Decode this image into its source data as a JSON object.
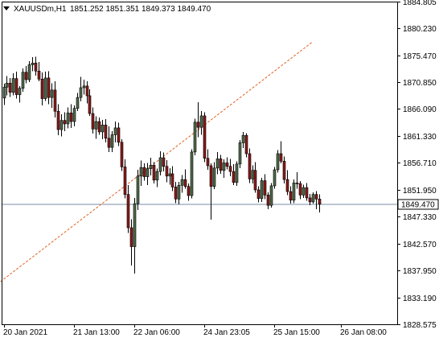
{
  "header": {
    "symbol": "XAUUSDm,H1",
    "ohlc": "1851.252 1851.351 1849.373 1849.470"
  },
  "colors": {
    "bull": "#4f6b4a",
    "bear": "#8b1a1a",
    "wick": "#000000",
    "price_line": "#7a8da8",
    "price_label_bg": "#ffffff",
    "trendline": "#e06020",
    "axis": "#000000"
  },
  "chart_data": {
    "type": "candlestick",
    "instrument": "XAUUSDm",
    "timeframe": "H1",
    "ylim": [
      1828.575,
      1884.805
    ],
    "y_ticks": [
      {
        "value": 1884.805,
        "label": "1884.805"
      },
      {
        "value": 1880.23,
        "label": "1880.230"
      },
      {
        "value": 1875.47,
        "label": "1875.470"
      },
      {
        "value": 1870.85,
        "label": "1870.850"
      },
      {
        "value": 1866.09,
        "label": "1866.090"
      },
      {
        "value": 1861.33,
        "label": "1861.330"
      },
      {
        "value": 1856.71,
        "label": "1856.710"
      },
      {
        "value": 1851.95,
        "label": "1851.950"
      },
      {
        "value": 1847.33,
        "label": "1847.330"
      },
      {
        "value": 1842.57,
        "label": "1842.570"
      },
      {
        "value": 1837.95,
        "label": "1837.950"
      },
      {
        "value": 1833.19,
        "label": "1833.190"
      },
      {
        "value": 1828.575,
        "label": "1828.575"
      }
    ],
    "x_ticks": [
      {
        "index": 0,
        "label": "20 Jan 2021"
      },
      {
        "index": 22,
        "label": "21 Jan 13:00"
      },
      {
        "index": 41,
        "label": "22 Jan 06:00"
      },
      {
        "index": 63,
        "label": "24 Jan 23:05"
      },
      {
        "index": 85,
        "label": "25 Jan 15:00"
      },
      {
        "index": 106,
        "label": "26 Jan 08:00"
      }
    ],
    "current_price": {
      "value": 1849.47,
      "label": "1849.470"
    },
    "trendline": {
      "from": {
        "index": -1,
        "price": 1836.0
      },
      "to": {
        "index": 97,
        "price": 1877.8
      }
    },
    "candles": [
      [
        1868.0,
        1870.5,
        1866.8,
        1869.9
      ],
      [
        1869.9,
        1871.8,
        1868.5,
        1870.6
      ],
      [
        1870.6,
        1871.5,
        1868.2,
        1869.0
      ],
      [
        1869.0,
        1872.3,
        1868.5,
        1871.4
      ],
      [
        1871.4,
        1872.6,
        1867.9,
        1868.6
      ],
      [
        1868.6,
        1870.1,
        1867.2,
        1869.7
      ],
      [
        1869.7,
        1873.2,
        1869.1,
        1872.5
      ],
      [
        1872.5,
        1873.6,
        1870.6,
        1871.2
      ],
      [
        1871.2,
        1874.4,
        1870.8,
        1873.8
      ],
      [
        1873.8,
        1875.1,
        1872.7,
        1874.1
      ],
      [
        1874.1,
        1875.2,
        1871.9,
        1872.7
      ],
      [
        1872.7,
        1874.3,
        1870.9,
        1871.3
      ],
      [
        1871.3,
        1872.5,
        1866.7,
        1867.9
      ],
      [
        1867.9,
        1872.6,
        1867.5,
        1871.5
      ],
      [
        1871.5,
        1872.7,
        1866.9,
        1868.1
      ],
      [
        1868.1,
        1870.6,
        1866.3,
        1869.4
      ],
      [
        1869.4,
        1870.9,
        1864.6,
        1865.7
      ],
      [
        1865.7,
        1866.9,
        1861.5,
        1862.5
      ],
      [
        1862.5,
        1865.2,
        1861.3,
        1864.1
      ],
      [
        1864.1,
        1865.5,
        1862.2,
        1863.5
      ],
      [
        1863.5,
        1866.4,
        1862.7,
        1865.4
      ],
      [
        1865.4,
        1866.9,
        1862.8,
        1863.9
      ],
      [
        1863.9,
        1866.7,
        1863.1,
        1866.2
      ],
      [
        1866.2,
        1868.9,
        1865.7,
        1868.1
      ],
      [
        1868.1,
        1871.7,
        1867.4,
        1869.8
      ],
      [
        1869.8,
        1871.2,
        1868.6,
        1870.1
      ],
      [
        1870.1,
        1870.9,
        1867.1,
        1868.4
      ],
      [
        1868.4,
        1869.5,
        1864.9,
        1865.3
      ],
      [
        1865.3,
        1866.4,
        1861.8,
        1862.6
      ],
      [
        1862.6,
        1864.8,
        1860.9,
        1863.9
      ],
      [
        1863.9,
        1864.6,
        1861.6,
        1862.1
      ],
      [
        1862.1,
        1864.2,
        1860.8,
        1863.3
      ],
      [
        1863.3,
        1864.3,
        1860.3,
        1861.0
      ],
      [
        1861.0,
        1863.1,
        1858.6,
        1859.4
      ],
      [
        1859.4,
        1862.2,
        1858.6,
        1861.6
      ],
      [
        1861.6,
        1863.9,
        1860.3,
        1862.8
      ],
      [
        1862.8,
        1863.7,
        1859.6,
        1860.3
      ],
      [
        1860.3,
        1860.8,
        1855.3,
        1856.0
      ],
      [
        1856.0,
        1857.3,
        1850.5,
        1851.2
      ],
      [
        1851.2,
        1852.8,
        1844.5,
        1845.4
      ],
      [
        1845.4,
        1846.9,
        1838.8,
        1842.1
      ],
      [
        1842.1,
        1850.6,
        1837.4,
        1849.6
      ],
      [
        1849.6,
        1855.5,
        1848.5,
        1854.4
      ],
      [
        1854.4,
        1857.1,
        1852.7,
        1855.9
      ],
      [
        1855.9,
        1856.6,
        1853.6,
        1854.3
      ],
      [
        1854.3,
        1856.7,
        1852.8,
        1855.7
      ],
      [
        1855.7,
        1857.6,
        1854.5,
        1856.3
      ],
      [
        1856.3,
        1856.8,
        1853.1,
        1853.7
      ],
      [
        1853.7,
        1855.7,
        1852.5,
        1855.2
      ],
      [
        1855.2,
        1858.7,
        1854.5,
        1857.6
      ],
      [
        1857.6,
        1858.5,
        1855.2,
        1856.1
      ],
      [
        1856.1,
        1857.2,
        1853.3,
        1854.4
      ],
      [
        1854.4,
        1855.8,
        1852.9,
        1854.8
      ],
      [
        1854.8,
        1856.1,
        1851.8,
        1852.5
      ],
      [
        1852.5,
        1853.4,
        1849.7,
        1850.4
      ],
      [
        1850.4,
        1853.4,
        1849.5,
        1852.8
      ],
      [
        1852.8,
        1854.6,
        1851.5,
        1853.8
      ],
      [
        1853.8,
        1855.6,
        1852.2,
        1852.6
      ],
      [
        1852.6,
        1853.1,
        1850.1,
        1851.0
      ],
      [
        1851.0,
        1859.1,
        1850.5,
        1858.6
      ],
      [
        1858.6,
        1864.4,
        1858.0,
        1863.8
      ],
      [
        1863.8,
        1867.3,
        1861.2,
        1862.9
      ],
      [
        1862.9,
        1865.7,
        1861.6,
        1864.9
      ],
      [
        1864.9,
        1865.5,
        1856.8,
        1857.5
      ],
      [
        1857.5,
        1859.1,
        1855.5,
        1856.2
      ],
      [
        1856.2,
        1856.6,
        1846.8,
        1852.6
      ],
      [
        1852.6,
        1856.8,
        1852.1,
        1855.8
      ],
      [
        1855.8,
        1858.6,
        1854.7,
        1857.4
      ],
      [
        1857.4,
        1858.1,
        1854.8,
        1855.4
      ],
      [
        1855.4,
        1857.3,
        1854.1,
        1856.7
      ],
      [
        1856.7,
        1857.7,
        1855.6,
        1856.1
      ],
      [
        1856.1,
        1857.4,
        1854.4,
        1855.2
      ],
      [
        1855.2,
        1856.5,
        1852.8,
        1853.3
      ],
      [
        1853.3,
        1857.0,
        1852.7,
        1856.5
      ],
      [
        1856.5,
        1860.7,
        1855.8,
        1860.2
      ],
      [
        1860.2,
        1862.1,
        1859.3,
        1861.5
      ],
      [
        1861.5,
        1861.9,
        1857.7,
        1858.3
      ],
      [
        1858.3,
        1859.2,
        1853.2,
        1853.9
      ],
      [
        1853.9,
        1856.3,
        1853.1,
        1855.4
      ],
      [
        1855.4,
        1856.8,
        1851.5,
        1852.0
      ],
      [
        1852.0,
        1852.6,
        1849.8,
        1850.5
      ],
      [
        1850.5,
        1854.1,
        1849.9,
        1853.6
      ],
      [
        1853.6,
        1854.7,
        1850.4,
        1851.1
      ],
      [
        1851.1,
        1851.6,
        1848.6,
        1849.3
      ],
      [
        1849.3,
        1853.2,
        1848.9,
        1852.7
      ],
      [
        1852.7,
        1856.0,
        1852.2,
        1855.5
      ],
      [
        1855.5,
        1858.9,
        1855.0,
        1858.3
      ],
      [
        1858.3,
        1860.5,
        1856.6,
        1857.0
      ],
      [
        1857.0,
        1857.8,
        1853.1,
        1853.8
      ],
      [
        1853.8,
        1855.4,
        1851.1,
        1851.7
      ],
      [
        1851.7,
        1852.6,
        1849.6,
        1850.2
      ],
      [
        1850.2,
        1853.8,
        1849.7,
        1853.2
      ],
      [
        1853.2,
        1855.1,
        1852.2,
        1853.1
      ],
      [
        1853.1,
        1853.5,
        1850.4,
        1851.1
      ],
      [
        1851.1,
        1852.9,
        1850.6,
        1852.4
      ],
      [
        1852.4,
        1853.2,
        1850.1,
        1850.6
      ],
      [
        1850.6,
        1851.3,
        1849.3,
        1849.9
      ],
      [
        1849.9,
        1851.6,
        1849.6,
        1851.2
      ],
      [
        1851.2,
        1851.8,
        1848.6,
        1850.4
      ],
      [
        1850.4,
        1851.2,
        1848.1,
        1849.5
      ]
    ]
  }
}
